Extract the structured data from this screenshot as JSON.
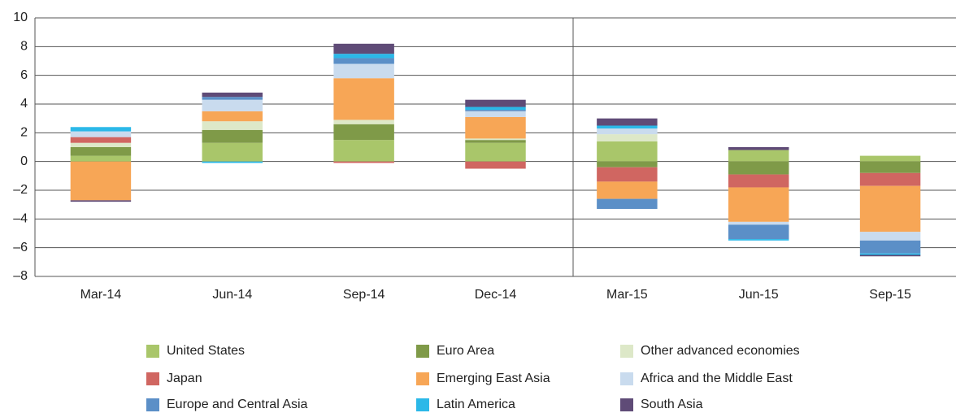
{
  "chart_data": {
    "type": "stacked_bar",
    "categories": [
      "Mar-14",
      "Jun-14",
      "Sep-14",
      "Dec-14",
      "Mar-15",
      "Jun-15",
      "Sep-15"
    ],
    "ylim": [
      -8,
      10
    ],
    "yticks": [
      {
        "value": -8,
        "label": "–8"
      },
      {
        "value": -6,
        "label": "–6"
      },
      {
        "value": -4,
        "label": "–4"
      },
      {
        "value": -2,
        "label": "–2"
      },
      0,
      2,
      4,
      6,
      8,
      10
    ],
    "grid": true,
    "series": [
      {
        "name": "United States",
        "color": "#a9c66a",
        "values": [
          0.4,
          1.3,
          1.5,
          1.3,
          1.4,
          0.8,
          0.4
        ]
      },
      {
        "name": "Euro Area",
        "color": "#7f9a48",
        "values": [
          0.6,
          0.9,
          1.1,
          0.2,
          -0.4,
          -0.9,
          -0.8
        ]
      },
      {
        "name": "Other advanced economies",
        "color": "#dde8c8",
        "values": [
          0.3,
          0.6,
          0.3,
          0.1,
          0.5,
          0,
          0
        ]
      },
      {
        "name": "Japan",
        "color": "#d06661",
        "values": [
          0.4,
          0,
          -0.1,
          -0.5,
          -1.0,
          -0.9,
          -0.9
        ]
      },
      {
        "name": "Emerging East Asia",
        "color": "#f7a656",
        "values": [
          -2.7,
          0.7,
          2.9,
          1.5,
          -1.2,
          -2.4,
          -3.2
        ]
      },
      {
        "name": "Africa and the Middle East",
        "color": "#c9dbee",
        "values": [
          0.4,
          0.8,
          1.0,
          0.4,
          0.4,
          -0.2,
          -0.6
        ]
      },
      {
        "name": "Europe and Central Asia",
        "color": "#5b8fc7",
        "values": [
          0,
          0.2,
          0.4,
          0.1,
          -0.7,
          -1.0,
          -0.9
        ]
      },
      {
        "name": "Latin America",
        "color": "#2bb8e8",
        "values": [
          0.3,
          -0.1,
          0.3,
          0.2,
          0.2,
          -0.1,
          -0.1
        ]
      },
      {
        "name": "South Asia",
        "color": "#5f4b77",
        "values": [
          -0.1,
          0.3,
          0.7,
          0.5,
          0.5,
          0.2,
          -0.1
        ]
      }
    ]
  }
}
